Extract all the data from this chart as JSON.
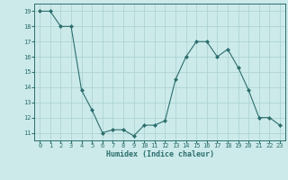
{
  "x": [
    0,
    1,
    2,
    3,
    4,
    5,
    6,
    7,
    8,
    9,
    10,
    11,
    12,
    13,
    14,
    15,
    16,
    17,
    18,
    19,
    20,
    21,
    22,
    23
  ],
  "y": [
    19.0,
    19.0,
    18.0,
    18.0,
    13.8,
    12.5,
    11.0,
    11.2,
    11.2,
    10.8,
    11.5,
    11.5,
    11.8,
    14.5,
    16.0,
    17.0,
    17.0,
    16.0,
    16.5,
    15.3,
    13.8,
    12.0,
    12.0,
    11.5
  ],
  "line_color": "#2d6e6e",
  "marker": "D",
  "marker_size": 2,
  "bg_color": "#cceaea",
  "grid_color": "#aed4d4",
  "xlabel": "Humidex (Indice chaleur)",
  "xlim": [
    -0.5,
    23.5
  ],
  "ylim": [
    10.5,
    19.5
  ],
  "yticks": [
    11,
    12,
    13,
    14,
    15,
    16,
    17,
    18,
    19
  ],
  "xticks": [
    0,
    1,
    2,
    3,
    4,
    5,
    6,
    7,
    8,
    9,
    10,
    11,
    12,
    13,
    14,
    15,
    16,
    17,
    18,
    19,
    20,
    21,
    22,
    23
  ],
  "tick_color": "#2d6e6e",
  "label_color": "#2d6e6e",
  "spine_color": "#2d6e6e",
  "tick_fontsize": 5.0,
  "xlabel_fontsize": 6.0
}
